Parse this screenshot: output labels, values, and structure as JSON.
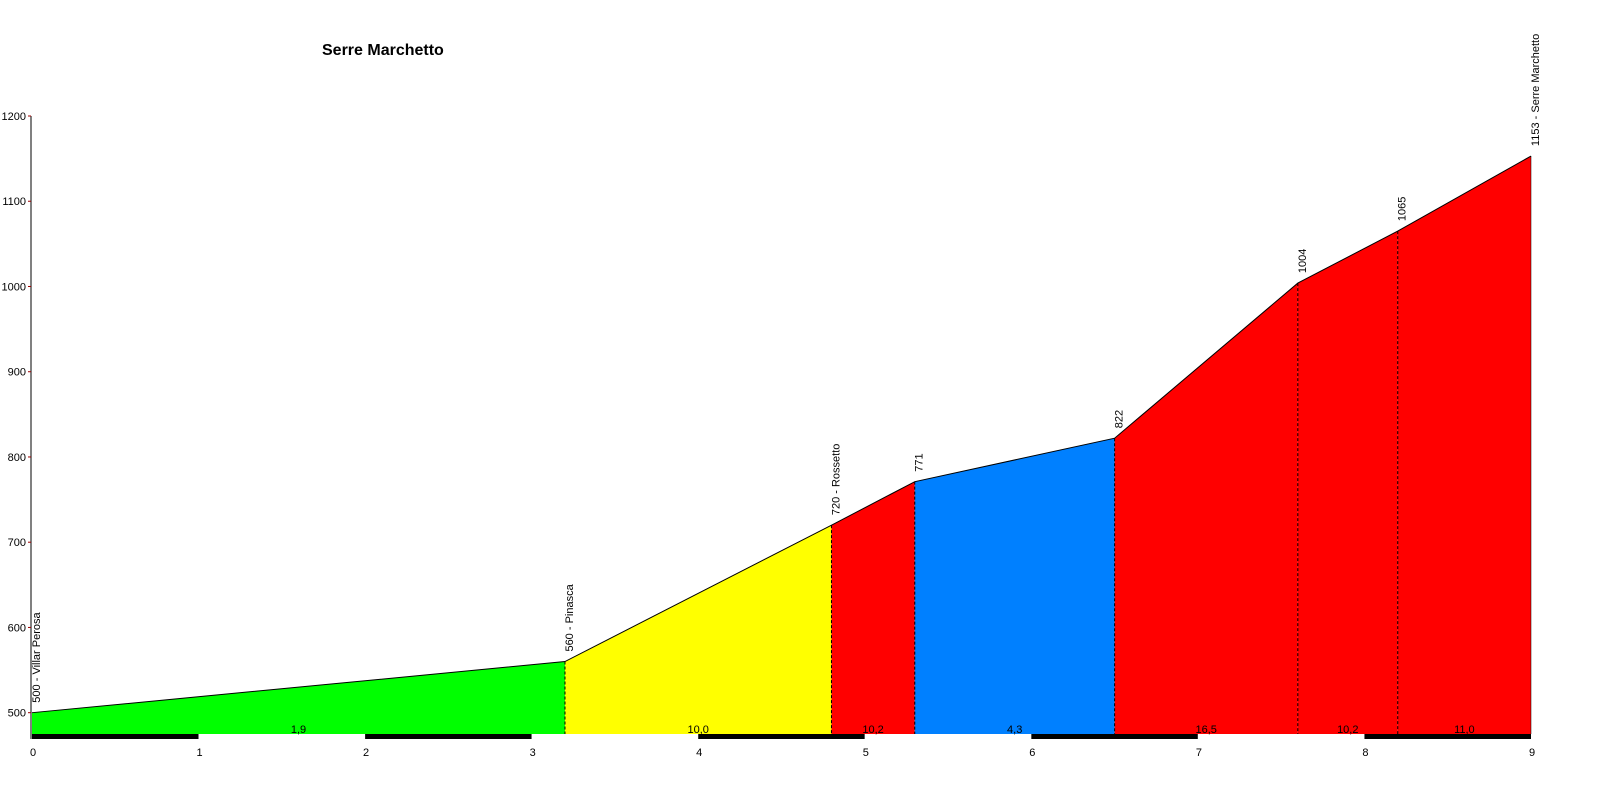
{
  "chart_data": {
    "type": "area",
    "title": "Serre Marchetto",
    "xlabel": "",
    "ylabel": "",
    "xlim": [
      0,
      9
    ],
    "ylim": [
      475,
      1200
    ],
    "x_ticks": [
      0,
      1,
      2,
      3,
      4,
      5,
      6,
      7,
      8,
      9
    ],
    "x_tick_labels": [
      "0",
      "1",
      "2",
      "3",
      "4",
      "5",
      "6",
      "7",
      "8",
      "9"
    ],
    "y_ticks": [
      500,
      600,
      700,
      800,
      900,
      1000,
      1100,
      1200
    ],
    "y_tick_labels": [
      "500",
      "600",
      "700",
      "800",
      "900",
      "1000",
      "1100",
      "1200"
    ],
    "points": [
      {
        "x": 0,
        "y": 500,
        "label": "500 - Villar Perosa"
      },
      {
        "x": 3.2,
        "y": 560,
        "label": "560 - Pinasca"
      },
      {
        "x": 4.8,
        "y": 720,
        "label": "720 - Rossetto"
      },
      {
        "x": 5.3,
        "y": 771,
        "label": "771"
      },
      {
        "x": 6.5,
        "y": 822,
        "label": "822"
      },
      {
        "x": 7.6,
        "y": 1004,
        "label": "1004"
      },
      {
        "x": 8.2,
        "y": 1065,
        "label": "1065"
      },
      {
        "x": 9,
        "y": 1153,
        "label": "1153 - Serre Marchetto"
      }
    ],
    "segments": [
      {
        "from": 0,
        "to": 3.2,
        "gradient": "1,9",
        "color": "#00ff00"
      },
      {
        "from": 3.2,
        "to": 4.8,
        "gradient": "10,0",
        "color": "#ffff00"
      },
      {
        "from": 4.8,
        "to": 5.3,
        "gradient": "10,2",
        "color": "#ff0000"
      },
      {
        "from": 5.3,
        "to": 6.5,
        "gradient": "4,3",
        "color": "#0080ff"
      },
      {
        "from": 6.5,
        "to": 7.6,
        "gradient": "16,5",
        "color": "#ff0000"
      },
      {
        "from": 7.6,
        "to": 8.2,
        "gradient": "10,2",
        "color": "#ff0000"
      },
      {
        "from": 8.2,
        "to": 9,
        "gradient": "11,0",
        "color": "#ff0000"
      }
    ],
    "grid": false,
    "legend": "none"
  }
}
